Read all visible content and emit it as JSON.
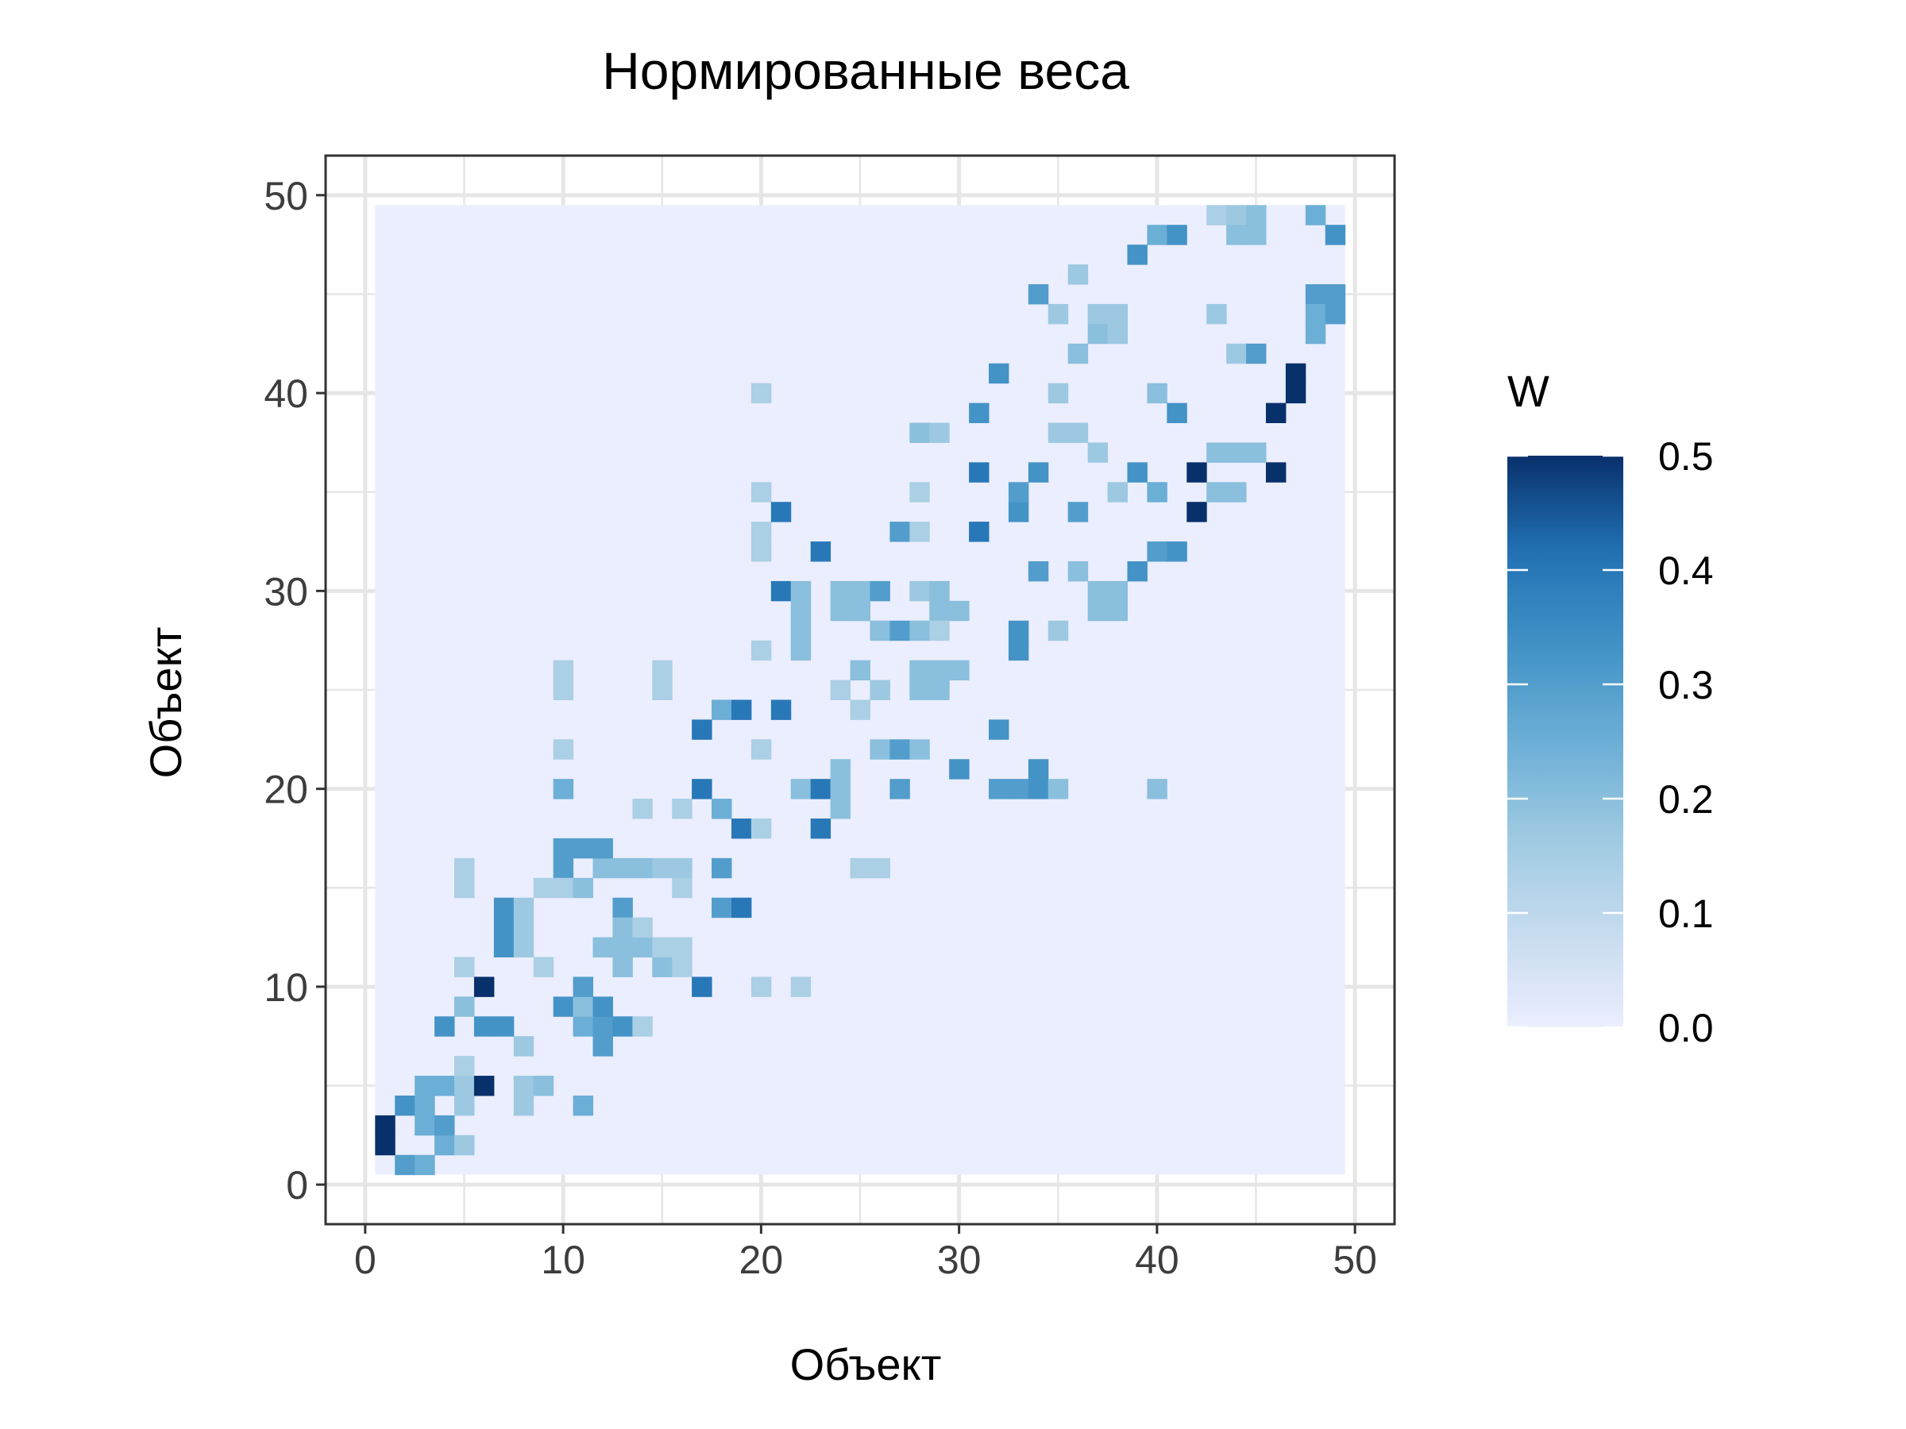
{
  "chart_data": {
    "type": "heatmap",
    "title": "Нормированные веса",
    "xlabel": "Объект",
    "ylabel": "Объект",
    "xlim": [
      -2,
      52
    ],
    "ylim": [
      -2,
      52
    ],
    "xticks": [
      0,
      10,
      20,
      30,
      40,
      50
    ],
    "yticks": [
      0,
      10,
      20,
      30,
      40,
      50
    ],
    "grid": true,
    "grid_color": "#e6e6e6",
    "n": 49,
    "background_value": 0.0,
    "colorscale": [
      "#ebeefe",
      "#c6dbef",
      "#9ecae1",
      "#6baed6",
      "#4292c6",
      "#2171b5",
      "#08306b"
    ],
    "legend": {
      "title": "W",
      "position": "right",
      "min": 0.0,
      "max": 0.5,
      "ticks": [
        0.0,
        0.1,
        0.2,
        0.3,
        0.4,
        0.5
      ],
      "tick_labels": [
        "0.0",
        "0.1",
        "0.2",
        "0.3",
        "0.4",
        "0.5"
      ]
    },
    "cells": [
      [
        1,
        3,
        0.5
      ],
      [
        1,
        2,
        0.5
      ],
      [
        2,
        1,
        0.3
      ],
      [
        2,
        4,
        0.33
      ],
      [
        3,
        1,
        0.25
      ],
      [
        3,
        3,
        0.25
      ],
      [
        3,
        4,
        0.25
      ],
      [
        3,
        5,
        0.25
      ],
      [
        4,
        2,
        0.25
      ],
      [
        4,
        3,
        0.3
      ],
      [
        4,
        5,
        0.25
      ],
      [
        5,
        2,
        0.17
      ],
      [
        5,
        4,
        0.17
      ],
      [
        5,
        5,
        0.17
      ],
      [
        5,
        6,
        0.14
      ],
      [
        5,
        9,
        0.2
      ],
      [
        5,
        11,
        0.14
      ],
      [
        5,
        15,
        0.14
      ],
      [
        5,
        16,
        0.14
      ],
      [
        6,
        5,
        0.5
      ],
      [
        6,
        10,
        0.5
      ],
      [
        4,
        8,
        0.33
      ],
      [
        6,
        8,
        0.33
      ],
      [
        7,
        8,
        0.33
      ],
      [
        7,
        12,
        0.33
      ],
      [
        7,
        13,
        0.33
      ],
      [
        7,
        14,
        0.33
      ],
      [
        8,
        4,
        0.17
      ],
      [
        8,
        5,
        0.17
      ],
      [
        8,
        7,
        0.17
      ],
      [
        8,
        12,
        0.17
      ],
      [
        8,
        13,
        0.17
      ],
      [
        8,
        14,
        0.17
      ],
      [
        9,
        11,
        0.14
      ],
      [
        9,
        15,
        0.14
      ],
      [
        9,
        5,
        0.2
      ],
      [
        10,
        9,
        0.33
      ],
      [
        11,
        4,
        0.25
      ],
      [
        11,
        8,
        0.25
      ],
      [
        12,
        12,
        0.2
      ],
      [
        12,
        8,
        0.2
      ],
      [
        12,
        16,
        0.2
      ],
      [
        12,
        17,
        0.3
      ],
      [
        13,
        14,
        0.3
      ],
      [
        13,
        12,
        0.2
      ],
      [
        13,
        16,
        0.2
      ],
      [
        13,
        13,
        0.2
      ],
      [
        10,
        16,
        0.3
      ],
      [
        10,
        15,
        0.14
      ],
      [
        10,
        17,
        0.3
      ],
      [
        10,
        20,
        0.25
      ],
      [
        10,
        22,
        0.14
      ],
      [
        10,
        25,
        0.14
      ],
      [
        10,
        26,
        0.14
      ],
      [
        11,
        17,
        0.3
      ],
      [
        11,
        9,
        0.2
      ],
      [
        11,
        10,
        0.3
      ],
      [
        11,
        15,
        0.2
      ],
      [
        12,
        8,
        0.3
      ],
      [
        12,
        7,
        0.3
      ],
      [
        12,
        9,
        0.33
      ],
      [
        13,
        8,
        0.33
      ],
      [
        13,
        11,
        0.2
      ],
      [
        14,
        16,
        0.2
      ],
      [
        14,
        12,
        0.2
      ],
      [
        14,
        13,
        0.14
      ],
      [
        14,
        8,
        0.14
      ],
      [
        14,
        19,
        0.14
      ],
      [
        15,
        16,
        0.17
      ],
      [
        15,
        11,
        0.2
      ],
      [
        15,
        12,
        0.14
      ],
      [
        15,
        26,
        0.14
      ],
      [
        15,
        25,
        0.14
      ],
      [
        16,
        16,
        0.17
      ],
      [
        16,
        11,
        0.14
      ],
      [
        16,
        12,
        0.14
      ],
      [
        16,
        15,
        0.14
      ],
      [
        16,
        19,
        0.14
      ],
      [
        17,
        10,
        0.4
      ],
      [
        17,
        20,
        0.4
      ],
      [
        17,
        23,
        0.4
      ],
      [
        18,
        16,
        0.3
      ],
      [
        18,
        14,
        0.3
      ],
      [
        18,
        19,
        0.25
      ],
      [
        18,
        24,
        0.25
      ],
      [
        19,
        14,
        0.4
      ],
      [
        19,
        18,
        0.4
      ],
      [
        19,
        24,
        0.4
      ],
      [
        20,
        10,
        0.14
      ],
      [
        20,
        18,
        0.14
      ],
      [
        20,
        22,
        0.14
      ],
      [
        20,
        27,
        0.14
      ],
      [
        20,
        32,
        0.14
      ],
      [
        20,
        33,
        0.14
      ],
      [
        20,
        35,
        0.14
      ],
      [
        20,
        40,
        0.14
      ],
      [
        21,
        30,
        0.4
      ],
      [
        21,
        34,
        0.4
      ],
      [
        21,
        24,
        0.4
      ],
      [
        22,
        10,
        0.14
      ],
      [
        22,
        20,
        0.2
      ],
      [
        22,
        27,
        0.2
      ],
      [
        22,
        28,
        0.2
      ],
      [
        22,
        29,
        0.2
      ],
      [
        22,
        30,
        0.2
      ],
      [
        23,
        18,
        0.4
      ],
      [
        23,
        20,
        0.4
      ],
      [
        23,
        32,
        0.4
      ],
      [
        24,
        21,
        0.2
      ],
      [
        24,
        25,
        0.14
      ],
      [
        24,
        30,
        0.2
      ],
      [
        24,
        29,
        0.2
      ],
      [
        24,
        20,
        0.2
      ],
      [
        24,
        19,
        0.2
      ],
      [
        25,
        29,
        0.2
      ],
      [
        25,
        26,
        0.2
      ],
      [
        25,
        30,
        0.2
      ],
      [
        25,
        29,
        0.2
      ],
      [
        25,
        24,
        0.14
      ],
      [
        25,
        16,
        0.14
      ],
      [
        26,
        25,
        0.17
      ],
      [
        26,
        28,
        0.2
      ],
      [
        26,
        30,
        0.3
      ],
      [
        26,
        22,
        0.2
      ],
      [
        26,
        16,
        0.14
      ],
      [
        27,
        20,
        0.3
      ],
      [
        27,
        28,
        0.3
      ],
      [
        27,
        33,
        0.3
      ],
      [
        27,
        22,
        0.3
      ],
      [
        28,
        28,
        0.2
      ],
      [
        28,
        26,
        0.2
      ],
      [
        28,
        25,
        0.2
      ],
      [
        28,
        30,
        0.17
      ],
      [
        28,
        35,
        0.14
      ],
      [
        28,
        33,
        0.14
      ],
      [
        28,
        38,
        0.2
      ],
      [
        28,
        22,
        0.2
      ],
      [
        29,
        30,
        0.2
      ],
      [
        29,
        26,
        0.2
      ],
      [
        29,
        25,
        0.2
      ],
      [
        29,
        29,
        0.2
      ],
      [
        29,
        28,
        0.14
      ],
      [
        29,
        38,
        0.17
      ],
      [
        30,
        29,
        0.2
      ],
      [
        30,
        26,
        0.2
      ],
      [
        30,
        21,
        0.33
      ],
      [
        31,
        36,
        0.4
      ],
      [
        31,
        33,
        0.4
      ],
      [
        31,
        39,
        0.33
      ],
      [
        32,
        23,
        0.33
      ],
      [
        32,
        41,
        0.33
      ],
      [
        32,
        20,
        0.3
      ],
      [
        33,
        34,
        0.33
      ],
      [
        33,
        27,
        0.33
      ],
      [
        33,
        28,
        0.33
      ],
      [
        33,
        20,
        0.3
      ],
      [
        33,
        35,
        0.3
      ],
      [
        34,
        36,
        0.33
      ],
      [
        34,
        21,
        0.33
      ],
      [
        34,
        20,
        0.33
      ],
      [
        34,
        31,
        0.3
      ],
      [
        34,
        45,
        0.3
      ],
      [
        35,
        20,
        0.2
      ],
      [
        35,
        28,
        0.17
      ],
      [
        35,
        40,
        0.17
      ],
      [
        35,
        38,
        0.17
      ],
      [
        35,
        44,
        0.17
      ],
      [
        36,
        31,
        0.2
      ],
      [
        36,
        34,
        0.3
      ],
      [
        36,
        46,
        0.17
      ],
      [
        36,
        42,
        0.2
      ],
      [
        36,
        38,
        0.17
      ],
      [
        37,
        30,
        0.2
      ],
      [
        37,
        29,
        0.2
      ],
      [
        37,
        43,
        0.2
      ],
      [
        37,
        44,
        0.17
      ],
      [
        37,
        37,
        0.17
      ],
      [
        38,
        30,
        0.2
      ],
      [
        38,
        29,
        0.2
      ],
      [
        38,
        43,
        0.17
      ],
      [
        38,
        44,
        0.17
      ],
      [
        38,
        35,
        0.17
      ],
      [
        39,
        31,
        0.33
      ],
      [
        39,
        36,
        0.33
      ],
      [
        39,
        47,
        0.33
      ],
      [
        40,
        32,
        0.3
      ],
      [
        40,
        35,
        0.25
      ],
      [
        40,
        40,
        0.2
      ],
      [
        40,
        48,
        0.25
      ],
      [
        40,
        20,
        0.2
      ],
      [
        41,
        32,
        0.33
      ],
      [
        41,
        39,
        0.33
      ],
      [
        41,
        48,
        0.33
      ],
      [
        42,
        36,
        0.5
      ],
      [
        42,
        34,
        0.5
      ],
      [
        43,
        35,
        0.2
      ],
      [
        43,
        37,
        0.2
      ],
      [
        43,
        44,
        0.17
      ],
      [
        43,
        49,
        0.14
      ],
      [
        44,
        35,
        0.2
      ],
      [
        44,
        37,
        0.2
      ],
      [
        44,
        49,
        0.17
      ],
      [
        44,
        48,
        0.2
      ],
      [
        44,
        42,
        0.17
      ],
      [
        45,
        37,
        0.2
      ],
      [
        45,
        42,
        0.3
      ],
      [
        45,
        49,
        0.2
      ],
      [
        45,
        48,
        0.2
      ],
      [
        46,
        36,
        0.5
      ],
      [
        46,
        39,
        0.5
      ],
      [
        47,
        40,
        0.5
      ],
      [
        47,
        41,
        0.5
      ],
      [
        48,
        45,
        0.3
      ],
      [
        48,
        44,
        0.25
      ],
      [
        48,
        43,
        0.25
      ],
      [
        48,
        49,
        0.25
      ],
      [
        49,
        44,
        0.3
      ],
      [
        49,
        45,
        0.3
      ],
      [
        49,
        48,
        0.33
      ]
    ]
  }
}
